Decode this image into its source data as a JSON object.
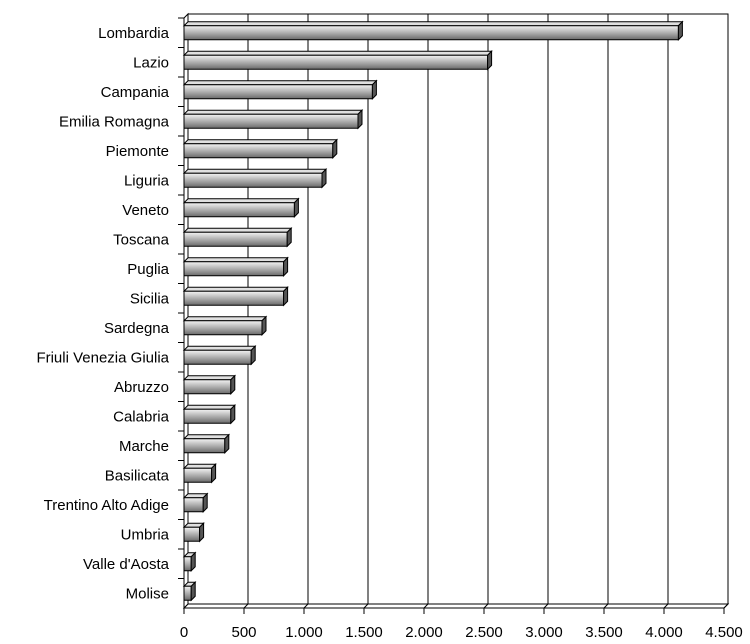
{
  "chart_data": {
    "type": "bar",
    "orientation": "horizontal",
    "style": "3d",
    "categories": [
      "Lombardia",
      "Lazio",
      "Campania",
      "Emilia Romagna",
      "Piemonte",
      "Liguria",
      "Veneto",
      "Toscana",
      "Puglia",
      "Sicilia",
      "Sardegna",
      "Friuli Venezia Giulia",
      "Abruzzo",
      "Calabria",
      "Marche",
      "Basilicata",
      "Trentino Alto Adige",
      "Umbria",
      "Valle d'Aosta",
      "Molise"
    ],
    "values": [
      4120,
      2530,
      1570,
      1450,
      1240,
      1150,
      920,
      860,
      830,
      830,
      650,
      560,
      390,
      390,
      340,
      230,
      160,
      130,
      60,
      60
    ],
    "xlim": [
      0,
      4500
    ],
    "xticks": [
      0,
      500,
      1000,
      1500,
      2000,
      2500,
      3000,
      3500,
      4000,
      4500
    ],
    "xtick_labels": [
      "0",
      "500",
      "1.000",
      "1.500",
      "2.000",
      "2.500",
      "3.000",
      "3.500",
      "4.000",
      "4.500"
    ],
    "grid": "vertical",
    "bar_color": "#b8b8b8",
    "title": "",
    "xlabel": "",
    "ylabel": ""
  }
}
